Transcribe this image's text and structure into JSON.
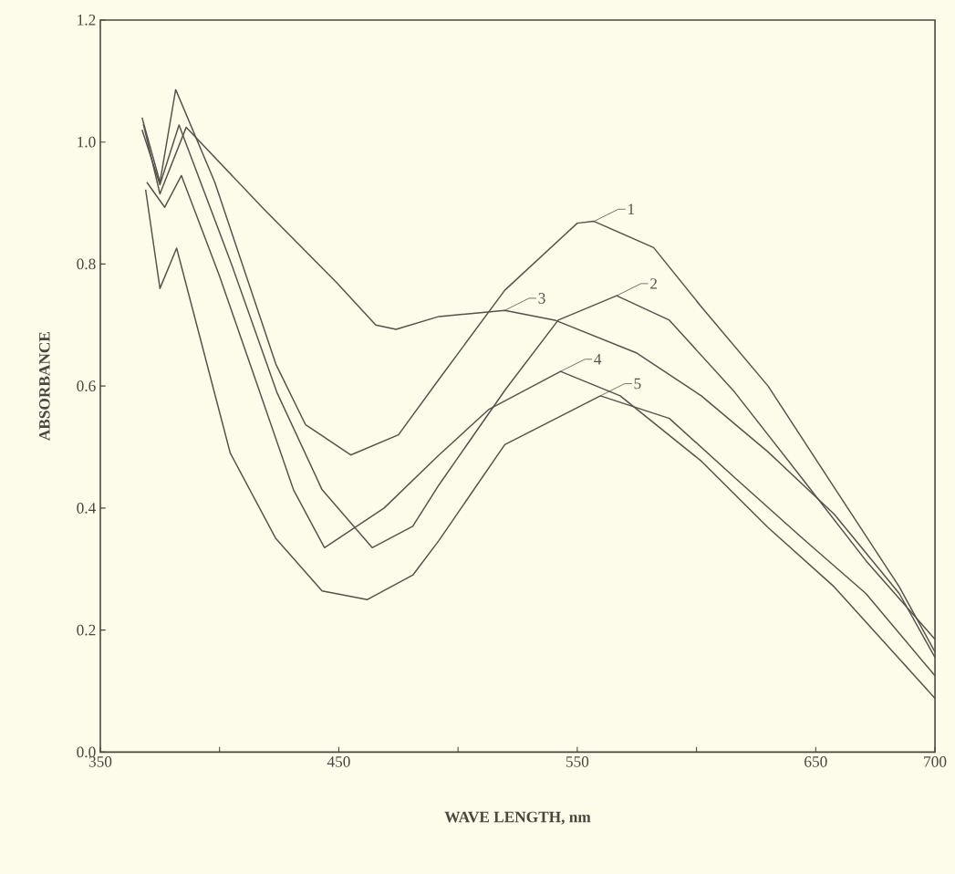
{
  "chart_data": {
    "type": "line",
    "xlabel": "WAVE LENGTH, nm",
    "ylabel": "ABSORBANCE",
    "xlim": [
      350,
      700
    ],
    "ylim": [
      0,
      1.2
    ],
    "xticks": [
      350,
      {
        "value": 400,
        "label": null
      },
      450,
      {
        "value": 500,
        "label": null
      },
      550,
      {
        "value": 600,
        "label": null
      },
      650,
      700
    ],
    "yticks": [
      {
        "value": 0,
        "label": "0.0"
      },
      0.2,
      0.4,
      0.6,
      0.8,
      {
        "value": 1,
        "label": "1.0"
      },
      1.2
    ],
    "legend": "top right",
    "marker": "none",
    "line_style": "solid",
    "grid": false,
    "series": [
      {
        "name": "1",
        "color": "#55524a",
        "x": [
          367.5,
          375,
          381.6,
          398,
          423.6,
          436,
          455,
          475,
          492,
          519.6,
          550,
          557,
          582,
          602,
          630,
          657.7,
          685,
          700
        ],
        "values": [
          1.04,
          0.934,
          1.086,
          0.934,
          0.636,
          0.537,
          0.487,
          0.52,
          0.611,
          0.757,
          0.867,
          0.87,
          0.827,
          0.73,
          0.6,
          0.434,
          0.271,
          0.164
        ]
      },
      {
        "name": "2",
        "color": "#55524a",
        "x": [
          367.5,
          375,
          383,
          405,
          424,
          443,
          464,
          481,
          492,
          520,
          542,
          566.5,
          588.6,
          616,
          644,
          671,
          700
        ],
        "values": [
          1.02,
          0.93,
          1.028,
          0.8,
          0.59,
          0.43,
          0.335,
          0.37,
          0.438,
          0.595,
          0.708,
          0.748,
          0.708,
          0.59,
          0.45,
          0.314,
          0.185
        ]
      },
      {
        "name": "3",
        "color": "#55524a",
        "x": [
          368,
          375,
          386,
          418.6,
          449,
          465.5,
          474,
          492,
          519.6,
          540.6,
          575,
          602,
          630,
          657.7,
          685,
          700
        ],
        "values": [
          1.03,
          0.915,
          1.024,
          0.89,
          0.77,
          0.7,
          0.693,
          0.714,
          0.724,
          0.708,
          0.654,
          0.584,
          0.492,
          0.39,
          0.26,
          0.155
        ]
      },
      {
        "name": "4",
        "color": "#55524a",
        "x": [
          369.5,
          377,
          384,
          400,
          416,
          431,
          444,
          469,
          492,
          513,
          543,
          568,
          602,
          630,
          657.7,
          700
        ],
        "values": [
          0.934,
          0.893,
          0.945,
          0.78,
          0.6,
          0.43,
          0.335,
          0.4,
          0.487,
          0.562,
          0.624,
          0.584,
          0.477,
          0.368,
          0.271,
          0.088
        ]
      },
      {
        "name": "5",
        "color": "#55524a",
        "x": [
          369,
          375,
          382,
          404.5,
          423.6,
          443,
          462,
          481,
          492,
          519.6,
          559.7,
          588.6,
          616,
          644,
          671,
          700
        ],
        "values": [
          0.922,
          0.76,
          0.826,
          0.49,
          0.35,
          0.264,
          0.25,
          0.29,
          0.347,
          0.504,
          0.584,
          0.547,
          0.45,
          0.352,
          0.26,
          0.125
        ]
      }
    ]
  }
}
